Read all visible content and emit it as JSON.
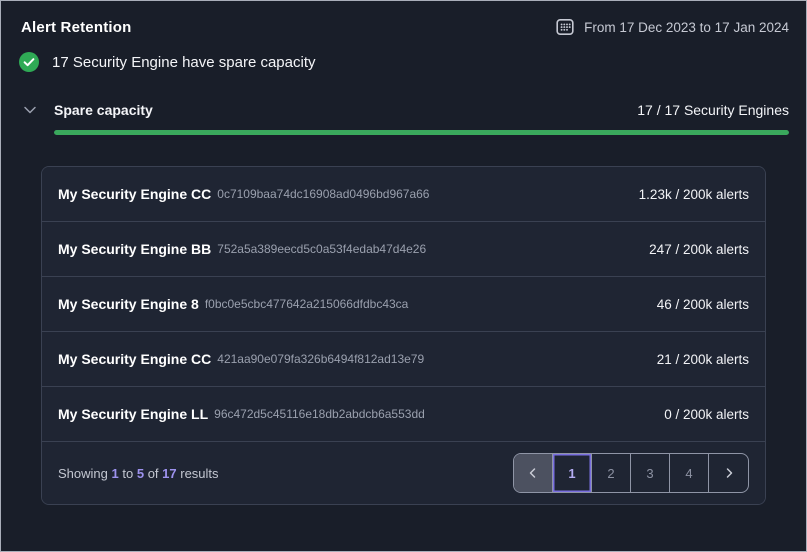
{
  "header": {
    "title": "Alert Retention",
    "date_range": "From 17 Dec 2023 to 17 Jan 2024"
  },
  "status": {
    "message": "17 Security Engine have spare capacity"
  },
  "section": {
    "label": "Spare capacity",
    "count": "17 / 17 Security Engines",
    "progress_percent": 100
  },
  "engines": [
    {
      "name": "My Security Engine CC",
      "id": "0c7109baa74dc16908ad0496bd967a66",
      "alerts": "1.23k / 200k alerts"
    },
    {
      "name": "My Security Engine BB",
      "id": "752a5a389eecd5c0a53f4edab47d4e26",
      "alerts": "247 / 200k alerts"
    },
    {
      "name": "My Security Engine 8",
      "id": "f0bc0e5cbc477642a215066dfdbc43ca",
      "alerts": "46 / 200k alerts"
    },
    {
      "name": "My Security Engine CC",
      "id": "421aa90e079fa326b6494f812ad13e79",
      "alerts": "21 / 200k alerts"
    },
    {
      "name": "My Security Engine LL",
      "id": "96c472d5c45116e18db2abdcb6a553dd",
      "alerts": "0 / 200k alerts"
    }
  ],
  "footer": {
    "showing": {
      "prefix": "Showing",
      "from": "1",
      "to_word": "to",
      "to": "5",
      "of_word": "of",
      "total": "17",
      "suffix": "results"
    },
    "pages": [
      "1",
      "2",
      "3",
      "4"
    ],
    "active_page": "1"
  },
  "icons": {
    "calendar": "calendar-grid",
    "check": "✓",
    "chevron_down": "⌄",
    "chevron_left": "‹",
    "chevron_right": "›"
  },
  "colors": {
    "background": "#191e29",
    "card_background": "#1f2533",
    "accent_green": "#3aa85c",
    "success_green": "#2faa55",
    "accent_purple": "#9d92ee",
    "active_border_purple": "#7a6fe0",
    "muted_text": "#9aa0ae"
  }
}
